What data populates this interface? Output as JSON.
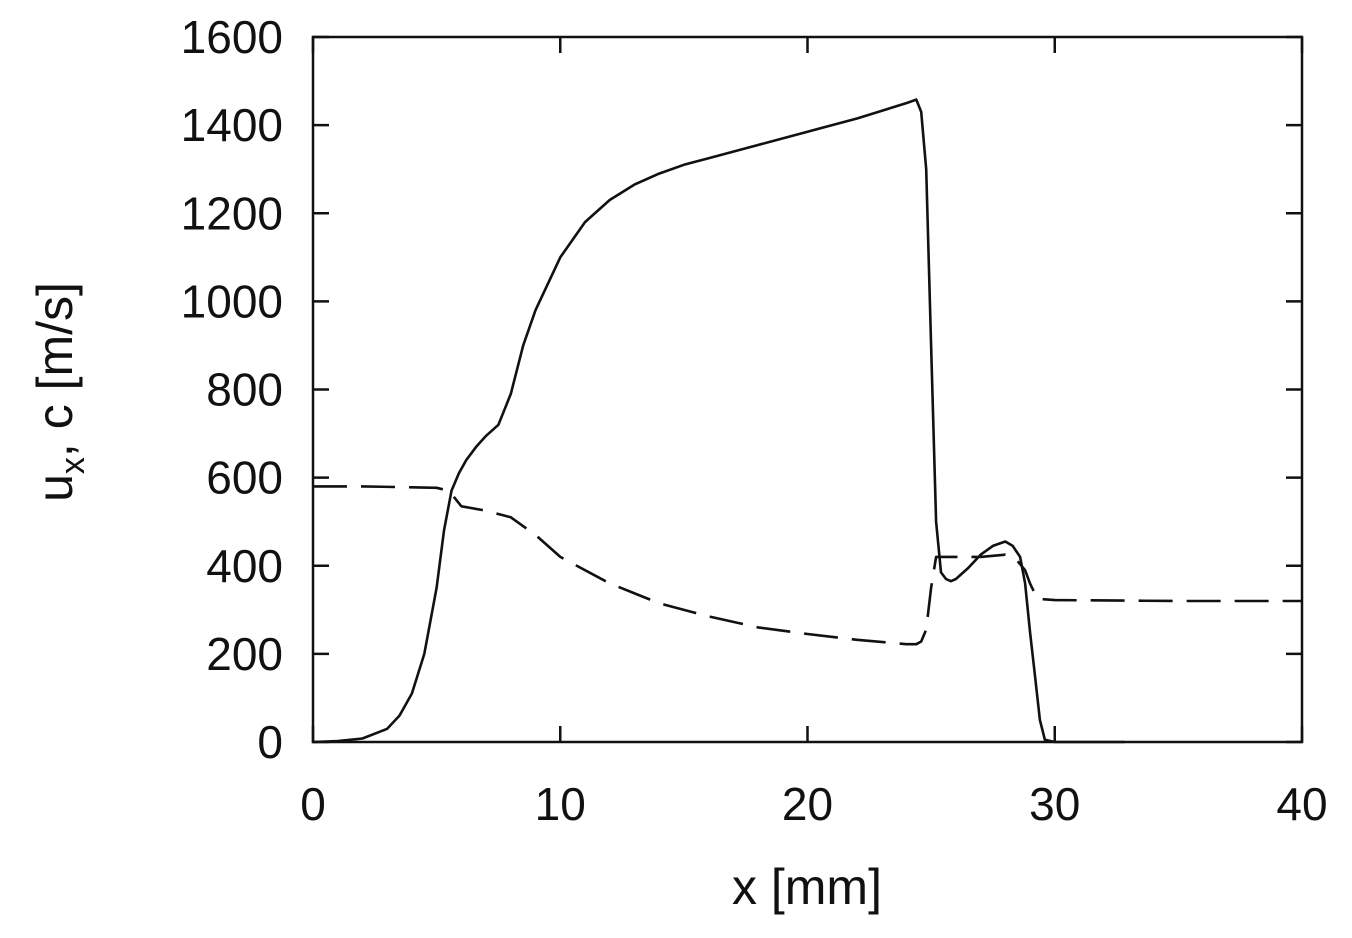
{
  "chart_data": {
    "type": "line",
    "title": "",
    "xlabel": "x [mm]",
    "ylabel": {
      "main": "u",
      "subscript": "x",
      "rest": ", c [m/s]"
    },
    "xlim": [
      0,
      40
    ],
    "ylim": [
      0,
      1600
    ],
    "xticks": [
      "0",
      "10",
      "20",
      "30",
      "40"
    ],
    "yticks": [
      "0",
      "200",
      "400",
      "600",
      "800",
      "1000",
      "1200",
      "1400",
      "1600"
    ],
    "grid": false,
    "legend": "none",
    "series": [
      {
        "style": "solid",
        "color": "#111111",
        "x": [
          0,
          1,
          2,
          3,
          3.5,
          4,
          4.5,
          5,
          5.3,
          5.6,
          5.9,
          6.2,
          6.6,
          7,
          7.5,
          8,
          8.5,
          9,
          10,
          11,
          12,
          13,
          14,
          15,
          16,
          18,
          20,
          22,
          24,
          24.4,
          24.6,
          24.8,
          25,
          25.2,
          25.4,
          25.6,
          25.8,
          26,
          26.5,
          27,
          27.5,
          28,
          28.3,
          28.6,
          28.8,
          29,
          29.2,
          29.4,
          29.6,
          30,
          32.8
        ],
        "y": [
          0,
          2,
          8,
          30,
          60,
          110,
          200,
          350,
          480,
          570,
          610,
          640,
          670,
          695,
          720,
          790,
          900,
          980,
          1100,
          1180,
          1230,
          1265,
          1290,
          1310,
          1325,
          1355,
          1385,
          1415,
          1450,
          1458,
          1430,
          1300,
          900,
          500,
          385,
          370,
          365,
          370,
          395,
          425,
          445,
          455,
          445,
          420,
          360,
          250,
          150,
          50,
          5,
          0,
          0
        ]
      },
      {
        "style": "dashed",
        "color": "#111111",
        "x": [
          0,
          2,
          4,
          5,
          5.5,
          6,
          7,
          8,
          9,
          10,
          12,
          14,
          16,
          18,
          20,
          22,
          24,
          24.4,
          24.6,
          24.8,
          25,
          25.2,
          26,
          27,
          28,
          28.5,
          28.8,
          29,
          29.3,
          30,
          35,
          40
        ],
        "y": [
          580,
          580,
          578,
          577,
          570,
          535,
          525,
          510,
          470,
          420,
          360,
          315,
          285,
          260,
          245,
          232,
          222,
          222,
          228,
          255,
          350,
          420,
          420,
          420,
          425,
          410,
          390,
          360,
          325,
          322,
          320,
          320
        ]
      }
    ]
  }
}
